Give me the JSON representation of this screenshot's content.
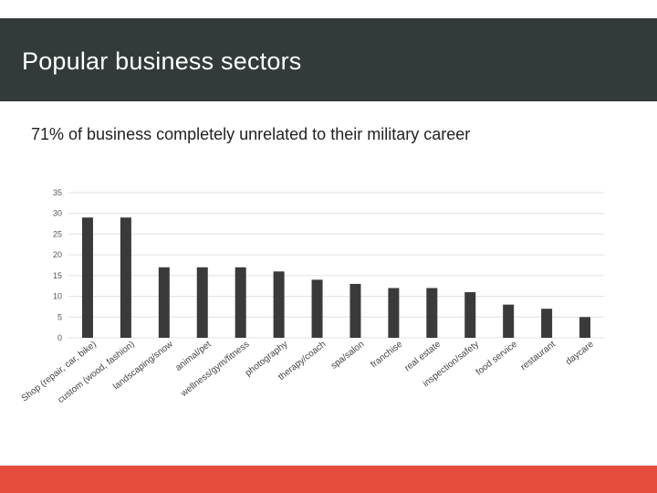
{
  "slide": {
    "title": "Popular business sectors",
    "subtitle": "71% of business completely unrelated to their military career"
  },
  "colors": {
    "header_bg": "#333a3a",
    "footer_bg": "#e74c3c",
    "bar": "#3a3a3a",
    "grid": "#e0e0e0",
    "axis_text": "#555555"
  },
  "chart_data": {
    "type": "bar",
    "title": "",
    "xlabel": "",
    "ylabel": "",
    "ylim": [
      0,
      35
    ],
    "yticks": [
      "0",
      "5",
      "10",
      "15",
      "20",
      "25",
      "30",
      "35"
    ],
    "grid": true,
    "categories": [
      "Shop (repair, car, bike)",
      "custom (wood, fashion)",
      "landscaping/snow",
      "animal/pet",
      "wellness/gym/fitness",
      "photography",
      "therapy/coach",
      "spa/salon",
      "franchise",
      "real estate",
      "inspection/safety",
      "food service",
      "restaurant",
      "daycare"
    ],
    "values": [
      29,
      29,
      17,
      17,
      17,
      16,
      14,
      13,
      12,
      12,
      11,
      8,
      7,
      5
    ]
  }
}
